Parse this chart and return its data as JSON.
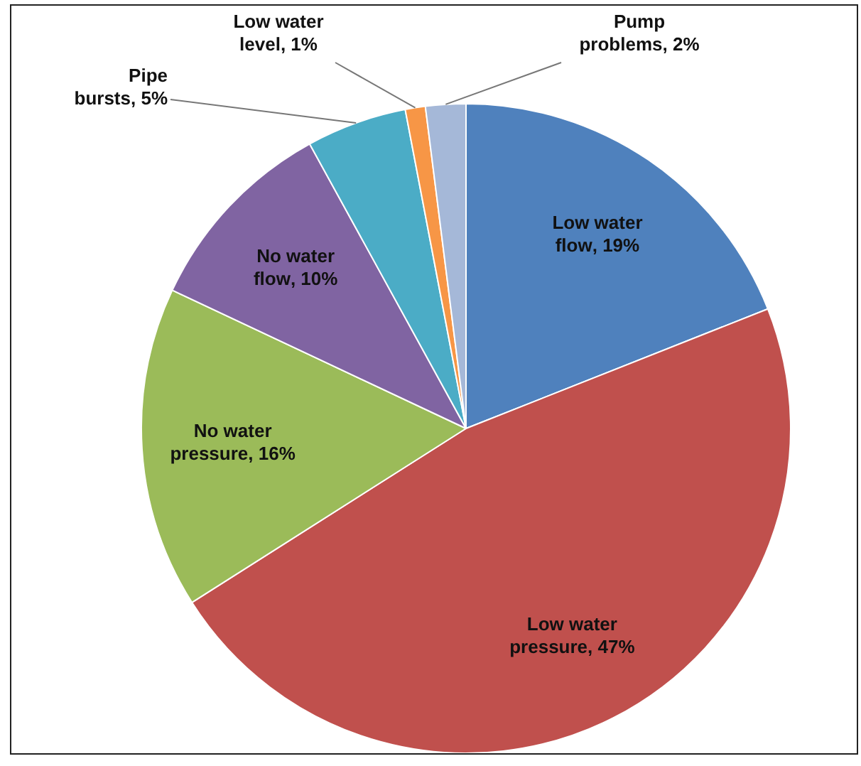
{
  "chart_data": {
    "type": "pie",
    "categories": [
      "Low water flow",
      "Low water pressure",
      "No water pressure",
      "No water flow",
      "Pipe bursts",
      "Low water level",
      "Pump problems"
    ],
    "values": [
      19,
      47,
      16,
      10,
      5,
      1,
      2
    ],
    "colors": [
      "#4f81bd",
      "#c0504d",
      "#9bbb59",
      "#8064a2",
      "#4bacc6",
      "#f79646",
      "#a5b8d8"
    ],
    "value_labels": [
      ", 19%",
      ", 47%",
      ", 16%",
      ", 10%",
      ", 5%",
      ", 1%",
      ", 2%"
    ],
    "legend": false
  }
}
